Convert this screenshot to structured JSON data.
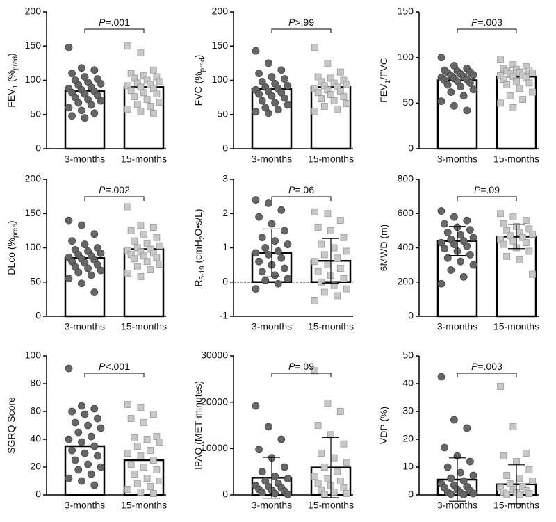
{
  "chart_data": [
    {
      "type": "bar",
      "y_label": [
        {
          "text": "FEV"
        },
        {
          "text": "1",
          "sub": true
        },
        {
          "text": " (%"
        },
        {
          "text": "pred",
          "sub": true
        },
        {
          "text": ")"
        }
      ],
      "p_label": {
        "symbol": "P",
        "text": "=.001"
      },
      "categories": [
        "3-months",
        "15-months"
      ],
      "values": [
        84,
        90
      ],
      "ylim": [
        0,
        200
      ],
      "yticks": [
        0,
        50,
        100,
        150,
        200
      ],
      "points": [
        [
          148,
          118,
          115,
          110,
          105,
          102,
          100,
          97,
          95,
          93,
          90,
          88,
          86,
          84,
          82,
          80,
          78,
          75,
          72,
          70,
          67,
          64,
          60,
          56,
          52,
          48,
          45
        ],
        [
          150,
          140,
          115,
          110,
          107,
          105,
          103,
          100,
          98,
          96,
          94,
          92,
          90,
          88,
          85,
          82,
          80,
          76,
          72,
          68,
          65,
          62,
          58,
          55,
          52
        ]
      ]
    },
    {
      "type": "bar",
      "y_label": [
        {
          "text": "FVC (%"
        },
        {
          "text": "pred",
          "sub": true
        },
        {
          "text": ")"
        }
      ],
      "p_label": {
        "symbol": "P",
        "text": ">.99"
      },
      "categories": [
        "3-months",
        "15-months"
      ],
      "values": [
        87,
        90
      ],
      "ylim": [
        0,
        200
      ],
      "yticks": [
        0,
        50,
        100,
        150,
        200
      ],
      "points": [
        [
          143,
          125,
          115,
          110,
          105,
          102,
          98,
          95,
          92,
          90,
          88,
          86,
          84,
          82,
          80,
          77,
          74,
          70,
          67,
          64,
          60,
          57,
          54,
          52
        ],
        [
          148,
          125,
          112,
          105,
          103,
          100,
          98,
          96,
          94,
          92,
          90,
          88,
          86,
          84,
          82,
          79,
          76,
          73,
          70,
          66,
          62,
          58,
          55
        ]
      ]
    },
    {
      "type": "bar",
      "y_label": [
        {
          "text": "FEV"
        },
        {
          "text": "1",
          "sub": true
        },
        {
          "text": "/FVC"
        }
      ],
      "p_label": {
        "symbol": "P",
        "text": "=.003"
      },
      "categories": [
        "3-months",
        "15-months"
      ],
      "values": [
        75,
        79
      ],
      "ylim": [
        0,
        150
      ],
      "yticks": [
        0,
        50,
        100,
        150
      ],
      "points": [
        [
          100,
          91,
          88,
          86,
          85,
          84,
          83,
          82,
          81,
          80,
          79,
          78,
          77,
          76,
          75,
          74,
          72,
          70,
          68,
          65,
          62,
          58,
          52,
          47,
          42
        ],
        [
          98,
          92,
          90,
          88,
          87,
          86,
          85,
          84,
          83,
          82,
          81,
          80,
          79,
          78,
          76,
          74,
          72,
          70,
          66,
          62,
          58,
          54,
          50,
          45
        ]
      ]
    },
    {
      "type": "bar",
      "y_label": [
        {
          "text": "DLco (%"
        },
        {
          "text": "pred",
          "sub": true
        },
        {
          "text": ")"
        }
      ],
      "p_label": {
        "symbol": "P",
        "text": "=.002"
      },
      "categories": [
        "3-months",
        "15-months"
      ],
      "values": [
        85,
        98
      ],
      "ylim": [
        0,
        200
      ],
      "yticks": [
        0,
        50,
        100,
        150,
        200
      ],
      "points": [
        [
          140,
          133,
          120,
          110,
          105,
          100,
          97,
          95,
          92,
          90,
          88,
          86,
          84,
          82,
          80,
          78,
          75,
          72,
          70,
          67,
          64,
          60,
          55,
          48,
          35
        ],
        [
          160,
          133,
          130,
          125,
          120,
          115,
          110,
          106,
          103,
          100,
          98,
          96,
          94,
          92,
          90,
          88,
          86,
          84,
          80,
          76,
          72,
          68,
          63,
          58
        ]
      ]
    },
    {
      "type": "bar",
      "y_label": [
        {
          "text": "R"
        },
        {
          "text": "5-19",
          "sub": true
        },
        {
          "text": " (cmH"
        },
        {
          "text": "2",
          "sub": true
        },
        {
          "text": "O•s/L)"
        }
      ],
      "p_label": {
        "symbol": "P",
        "text": "=.06"
      },
      "categories": [
        "3-months",
        "15-months"
      ],
      "values": [
        0.85,
        0.62
      ],
      "errors": [
        0.7,
        0.65
      ],
      "ylim": [
        -1,
        3
      ],
      "yticks": [
        -1,
        0,
        1,
        2,
        3
      ],
      "zero_line": "dashed",
      "points": [
        [
          2.4,
          2.3,
          2.1,
          1.9,
          1.7,
          1.5,
          1.3,
          1.2,
          1.1,
          1.0,
          0.9,
          0.85,
          0.8,
          0.7,
          0.6,
          0.5,
          0.4,
          0.3,
          0.2,
          0.1,
          0.05,
          -0.05,
          -0.2
        ],
        [
          2.05,
          2.0,
          1.8,
          1.6,
          1.5,
          1.3,
          1.1,
          1.0,
          0.9,
          0.8,
          0.7,
          0.6,
          0.5,
          0.4,
          0.3,
          0.2,
          0.1,
          0.0,
          -0.1,
          -0.2,
          -0.3,
          -0.4,
          -0.55
        ]
      ]
    },
    {
      "type": "bar",
      "y_label": [
        {
          "text": "6MWD (m)"
        }
      ],
      "p_label": {
        "symbol": "P",
        "text": "=.09"
      },
      "categories": [
        "3-months",
        "15-months"
      ],
      "values": [
        440,
        465
      ],
      "errors": [
        85,
        70
      ],
      "ylim": [
        0,
        800
      ],
      "yticks": [
        0,
        200,
        400,
        600,
        800
      ],
      "points": [
        [
          615,
          580,
          560,
          540,
          520,
          505,
          490,
          475,
          460,
          450,
          440,
          430,
          420,
          410,
          395,
          380,
          360,
          340,
          320,
          300,
          270,
          230,
          190
        ],
        [
          600,
          580,
          560,
          540,
          525,
          510,
          500,
          490,
          480,
          470,
          460,
          450,
          440,
          430,
          420,
          400,
          380,
          350,
          330,
          245
        ]
      ]
    },
    {
      "type": "bar",
      "y_label": [
        {
          "text": "SGRQ  Score"
        }
      ],
      "p_label": {
        "symbol": "P",
        "text": "<.001"
      },
      "categories": [
        "3-months",
        "15-months"
      ],
      "values": [
        35,
        25
      ],
      "ylim": [
        0,
        100
      ],
      "yticks": [
        0,
        20,
        40,
        60,
        80,
        100
      ],
      "points": [
        [
          91,
          64,
          62,
          60,
          58,
          55,
          52,
          50,
          48,
          45,
          42,
          40,
          38,
          35,
          32,
          30,
          28,
          25,
          22,
          20,
          18,
          15,
          12,
          10,
          7
        ],
        [
          65,
          63,
          58,
          55,
          52,
          42,
          41,
          40,
          38,
          35,
          32,
          30,
          28,
          25,
          22,
          20,
          18,
          15,
          12,
          10,
          8,
          6,
          4,
          2,
          1
        ]
      ]
    },
    {
      "type": "bar",
      "y_label": [
        {
          "text": "IPAQ (MET-minutes)"
        }
      ],
      "p_label": {
        "symbol": "P",
        "text": "=.09"
      },
      "categories": [
        "3-months",
        "15-months"
      ],
      "values": [
        3700,
        5900
      ],
      "errors": [
        4400,
        6500
      ],
      "ylim": [
        0,
        30000
      ],
      "yticks": [
        0,
        10000,
        20000,
        30000
      ],
      "points": [
        [
          19200,
          14700,
          12000,
          9800,
          8000,
          6000,
          5000,
          4000,
          3500,
          3000,
          2500,
          2000,
          1800,
          1500,
          1200,
          1000,
          800,
          500,
          300,
          100
        ],
        [
          26800,
          19800,
          18000,
          15000,
          13000,
          11000,
          9000,
          8000,
          7000,
          6000,
          5000,
          4000,
          3500,
          3000,
          2500,
          2000,
          1500,
          1000,
          600,
          300,
          100
        ]
      ]
    },
    {
      "type": "bar",
      "y_label": [
        {
          "text": "VDP (%)"
        }
      ],
      "p_label": {
        "symbol": "P",
        "text": "=.003"
      },
      "categories": [
        "3-months",
        "15-months"
      ],
      "values": [
        5.5,
        3.8
      ],
      "errors": [
        7.8,
        7
      ],
      "ylim": [
        0,
        50
      ],
      "yticks": [
        0,
        10,
        20,
        30,
        40,
        50
      ],
      "points": [
        [
          42.5,
          27,
          24,
          17,
          14,
          12,
          10,
          8,
          7,
          6,
          5,
          4,
          3.5,
          3,
          2.5,
          2,
          1.5,
          1,
          0.8,
          0.5,
          0.3,
          0.1
        ],
        [
          39,
          24.5,
          15,
          14,
          12,
          9,
          7,
          6,
          5,
          4,
          3,
          2.5,
          2,
          1.5,
          1,
          0.8,
          0.5,
          0.3,
          0.1
        ]
      ]
    }
  ]
}
